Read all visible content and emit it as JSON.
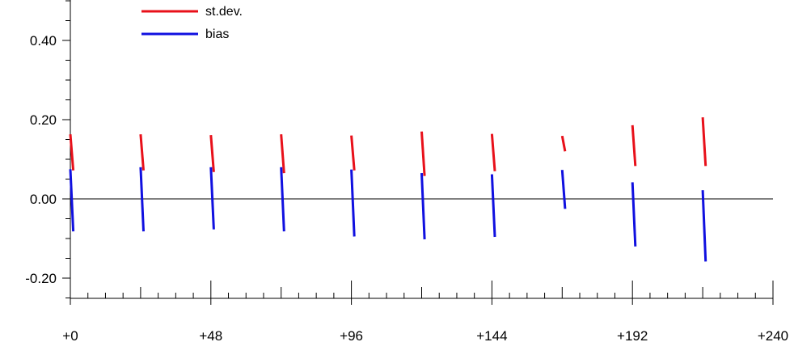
{
  "chart_data": {
    "type": "line",
    "title": "",
    "xlabel": "",
    "ylabel": "",
    "xlim": [
      0,
      240
    ],
    "ylim": [
      -0.25,
      0.5
    ],
    "grid": false,
    "legend_position": "top-left",
    "x_ticks": [
      {
        "value": 0,
        "label": "+0"
      },
      {
        "value": 48,
        "label": "+48"
      },
      {
        "value": 96,
        "label": "+96"
      },
      {
        "value": 144,
        "label": "+144"
      },
      {
        "value": 192,
        "label": "+192"
      },
      {
        "value": 240,
        "label": "+240"
      }
    ],
    "y_ticks": [
      {
        "value": 0.4,
        "label": "0.40"
      },
      {
        "value": 0.2,
        "label": "0.20"
      },
      {
        "value": 0.0,
        "label": "0.00"
      },
      {
        "value": -0.2,
        "label": "-0.20"
      }
    ],
    "reference_line": 0.0,
    "series": [
      {
        "name": "st.dev.",
        "color": "#e8101a",
        "segments": [
          [
            [
              0,
              0.163
            ],
            [
              1,
              0.072
            ]
          ],
          [
            [
              24,
              0.163
            ],
            [
              25,
              0.072
            ]
          ],
          [
            [
              48,
              0.161
            ],
            [
              49,
              0.068
            ]
          ],
          [
            [
              72,
              0.163
            ],
            [
              73,
              0.065
            ]
          ],
          [
            [
              96,
              0.16
            ],
            [
              97,
              0.072
            ]
          ],
          [
            [
              120,
              0.17
            ],
            [
              121,
              0.058
            ]
          ],
          [
            [
              144,
              0.164
            ],
            [
              145,
              0.07
            ]
          ],
          [
            [
              168,
              0.159
            ],
            [
              169,
              0.12
            ]
          ],
          [
            [
              192,
              0.186
            ],
            [
              193,
              0.083
            ]
          ],
          [
            [
              216,
              0.206
            ],
            [
              217,
              0.083
            ]
          ]
        ]
      },
      {
        "name": "bias",
        "color": "#1010e0",
        "segments": [
          [
            [
              0,
              0.075
            ],
            [
              1,
              -0.082
            ]
          ],
          [
            [
              24,
              0.08
            ],
            [
              25,
              -0.082
            ]
          ],
          [
            [
              48,
              0.08
            ],
            [
              49,
              -0.077
            ]
          ],
          [
            [
              72,
              0.08
            ],
            [
              73,
              -0.082
            ]
          ],
          [
            [
              96,
              0.074
            ],
            [
              97,
              -0.095
            ]
          ],
          [
            [
              120,
              0.065
            ],
            [
              121,
              -0.102
            ]
          ],
          [
            [
              144,
              0.062
            ],
            [
              145,
              -0.096
            ]
          ],
          [
            [
              168,
              0.073
            ],
            [
              169,
              -0.025
            ]
          ],
          [
            [
              192,
              0.042
            ],
            [
              193,
              -0.12
            ]
          ],
          [
            [
              216,
              0.022
            ],
            [
              217,
              -0.158
            ]
          ]
        ]
      }
    ]
  }
}
